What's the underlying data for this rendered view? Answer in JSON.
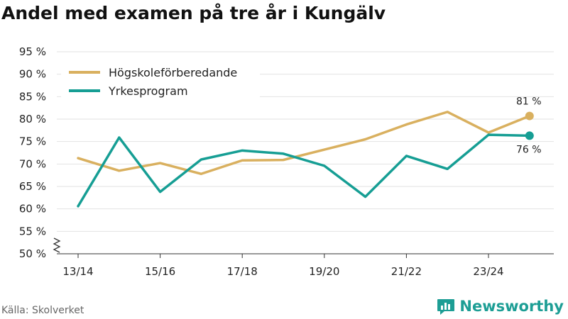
{
  "title": "Andel med examen på tre år i Kungälv",
  "source": "Källa: Skolverket",
  "brand": {
    "name": "Newsworthy",
    "color": "#1d9e95"
  },
  "chart_data": {
    "type": "line",
    "x": [
      "13/14",
      "14/15",
      "15/16",
      "16/17",
      "17/18",
      "18/19",
      "19/20",
      "20/21",
      "21/22",
      "22/23",
      "23/24",
      "24/25"
    ],
    "x_tick_labels": [
      "13/14",
      "15/16",
      "17/18",
      "19/20",
      "21/22",
      "23/24"
    ],
    "ylim": [
      50,
      95
    ],
    "y_ticks": [
      50,
      55,
      60,
      65,
      70,
      75,
      80,
      85,
      90,
      95
    ],
    "y_tick_labels": [
      "50 %",
      "55 %",
      "60 %",
      "65 %",
      "70 %",
      "75 %",
      "80 %",
      "85 %",
      "90 %",
      "95 %"
    ],
    "axis_break": true,
    "grid": true,
    "legend_position": "top-left",
    "series": [
      {
        "name": "Högskoleförberedande",
        "color": "#d9b05f",
        "values": [
          71.3,
          68.5,
          70.2,
          67.8,
          70.8,
          70.9,
          73.2,
          75.5,
          78.8,
          81.6,
          77.0,
          80.7
        ],
        "end_label": "81 %"
      },
      {
        "name": "Yrkesprogram",
        "color": "#169e94",
        "values": [
          60.6,
          75.9,
          63.8,
          71.0,
          73.0,
          72.3,
          69.6,
          62.7,
          71.8,
          68.9,
          76.5,
          76.3
        ],
        "end_label": "76 %"
      }
    ]
  }
}
